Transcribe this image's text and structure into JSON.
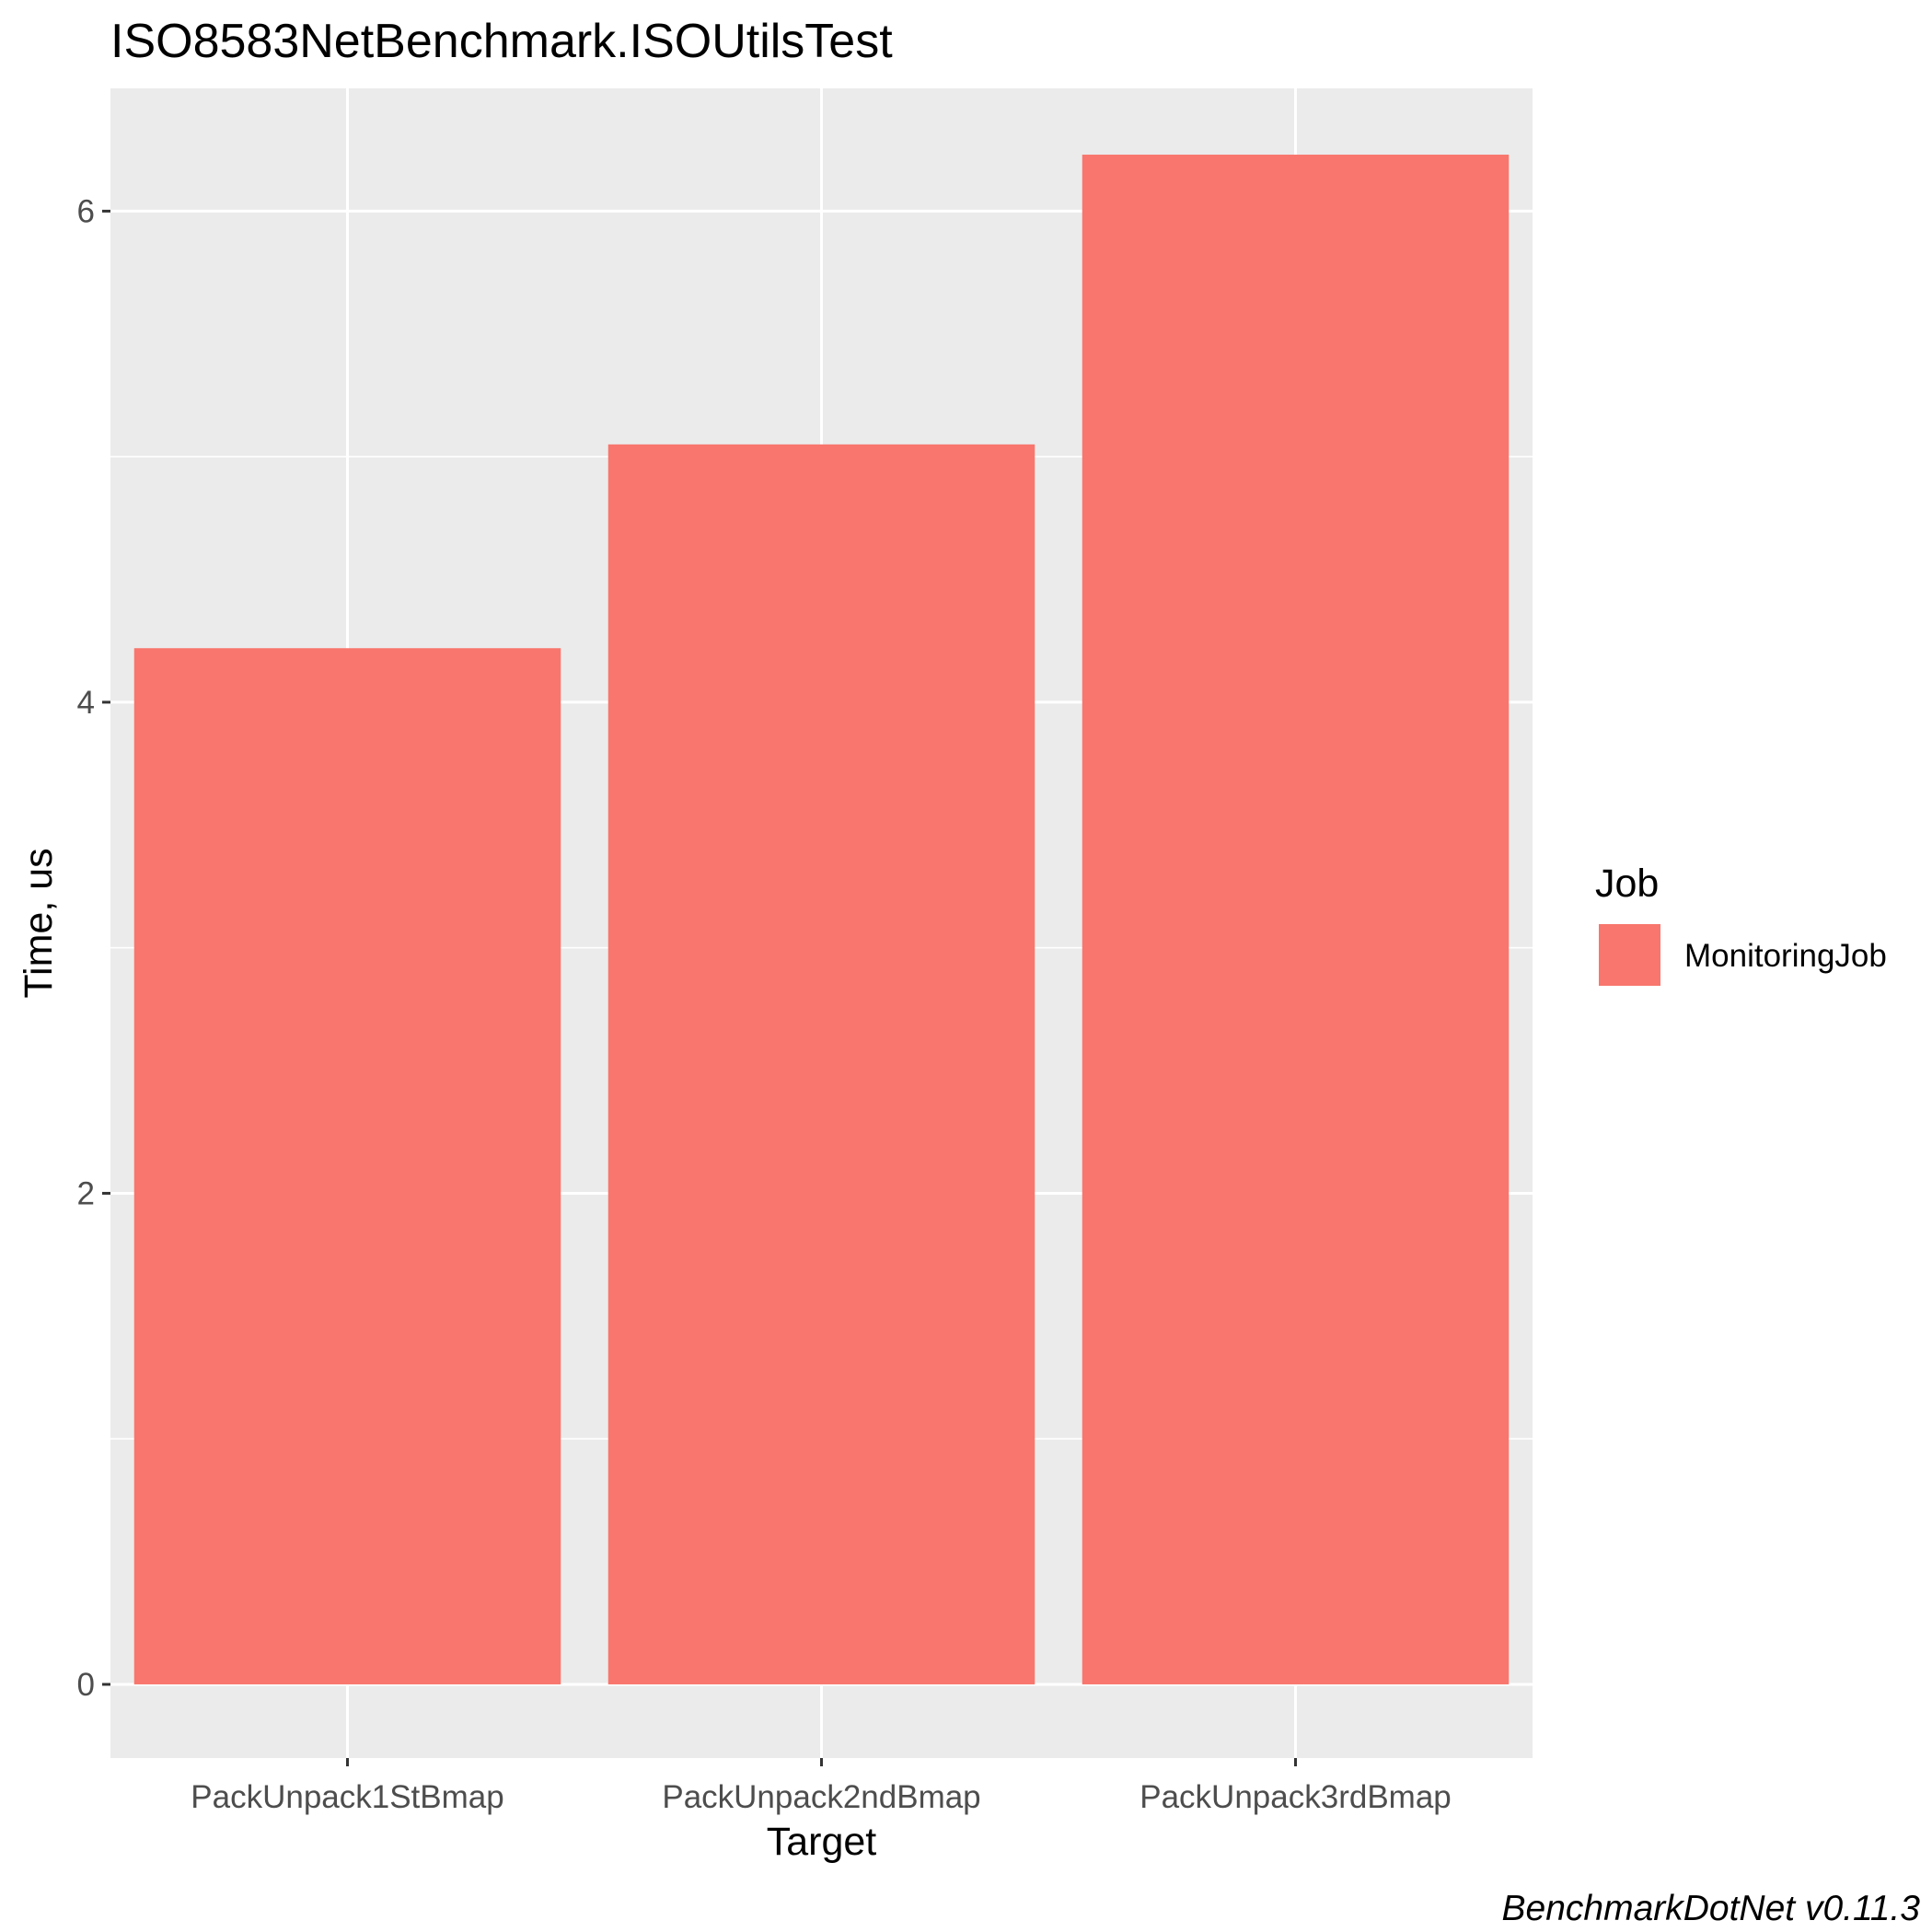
{
  "chart_data": {
    "type": "bar",
    "title": "ISO8583NetBenchmark.ISOUtilsTest",
    "xlabel": "Target",
    "ylabel": "Time, us",
    "categories": [
      "PackUnpack1StBmap",
      "PackUnpack2ndBmap",
      "PackUnpack3rdBmap"
    ],
    "series": [
      {
        "name": "MonitoringJob",
        "values": [
          4.22,
          5.05,
          6.23
        ]
      }
    ],
    "ylim": [
      -0.3,
      6.5
    ],
    "yticks": [
      0,
      2,
      4,
      6
    ],
    "grid": true,
    "legend": {
      "title": "Job",
      "position": "right"
    },
    "colors": {
      "bar": "#F8766D",
      "panel": "#EBEBEB",
      "grid": "#FFFFFF"
    },
    "caption": "BenchmarkDotNet v0.11.3"
  }
}
